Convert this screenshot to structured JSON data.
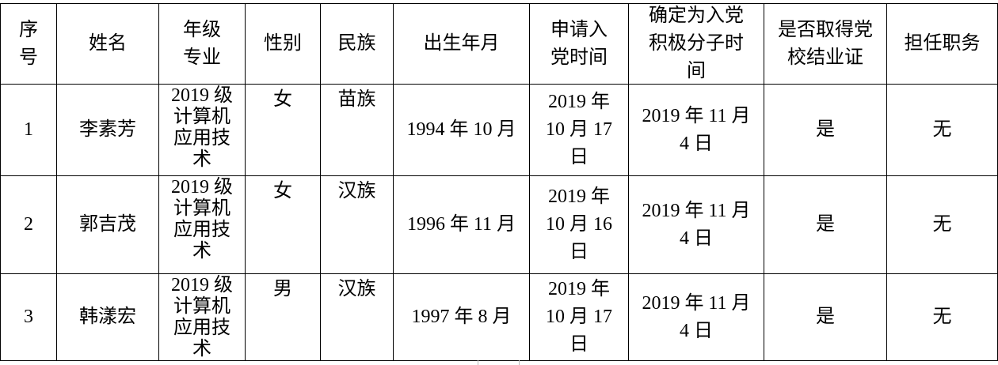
{
  "headers": [
    "序号",
    "姓名",
    "年级专业",
    "性别",
    "民族",
    "出生年月",
    "申请入党时间",
    "确定为入党积极分子时间",
    "是否取得党校结业证",
    "担任职务"
  ],
  "rows": [
    {
      "no": "1",
      "name": "李素芳",
      "grade": "2019 级计算机应用技术",
      "gender": "女",
      "ethnicity": "苗族",
      "birth": "1994 年 10 月",
      "apply": "2019 年 10 月 17 日",
      "activist": "2019 年 11 月 4 日",
      "certificate": "是",
      "position": "无"
    },
    {
      "no": "2",
      "name": "郭吉茂",
      "grade": "2019 级计算机应用技术",
      "gender": "女",
      "ethnicity": "汉族",
      "birth": "1996 年 11 月",
      "apply": "2019 年 10 月 16 日",
      "activist": "2019 年 11 月 4 日",
      "certificate": "是",
      "position": "无"
    },
    {
      "no": "3",
      "name": "韩漾宏",
      "grade": "2019 级计算机应用技术",
      "gender": "男",
      "ethnicity": "汉族",
      "birth": "1997 年 8 月",
      "apply": "2019 年 10 月 17 日",
      "activist": "2019 年 11 月 4 日",
      "certificate": "是",
      "position": "无"
    }
  ]
}
